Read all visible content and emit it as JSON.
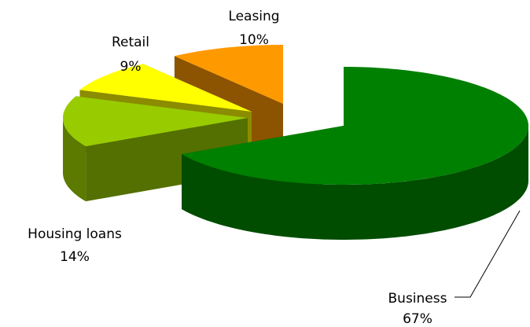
{
  "chart_data": {
    "type": "pie3d",
    "categories": [
      "Business",
      "Housing loans",
      "Retail",
      "Leasing"
    ],
    "values": [
      67,
      14,
      9,
      10
    ],
    "value_labels": [
      "67%",
      "14%",
      "9%",
      "10%"
    ],
    "colors": [
      "#008000",
      "#99cc00",
      "#ffff00",
      "#ff9900"
    ]
  }
}
